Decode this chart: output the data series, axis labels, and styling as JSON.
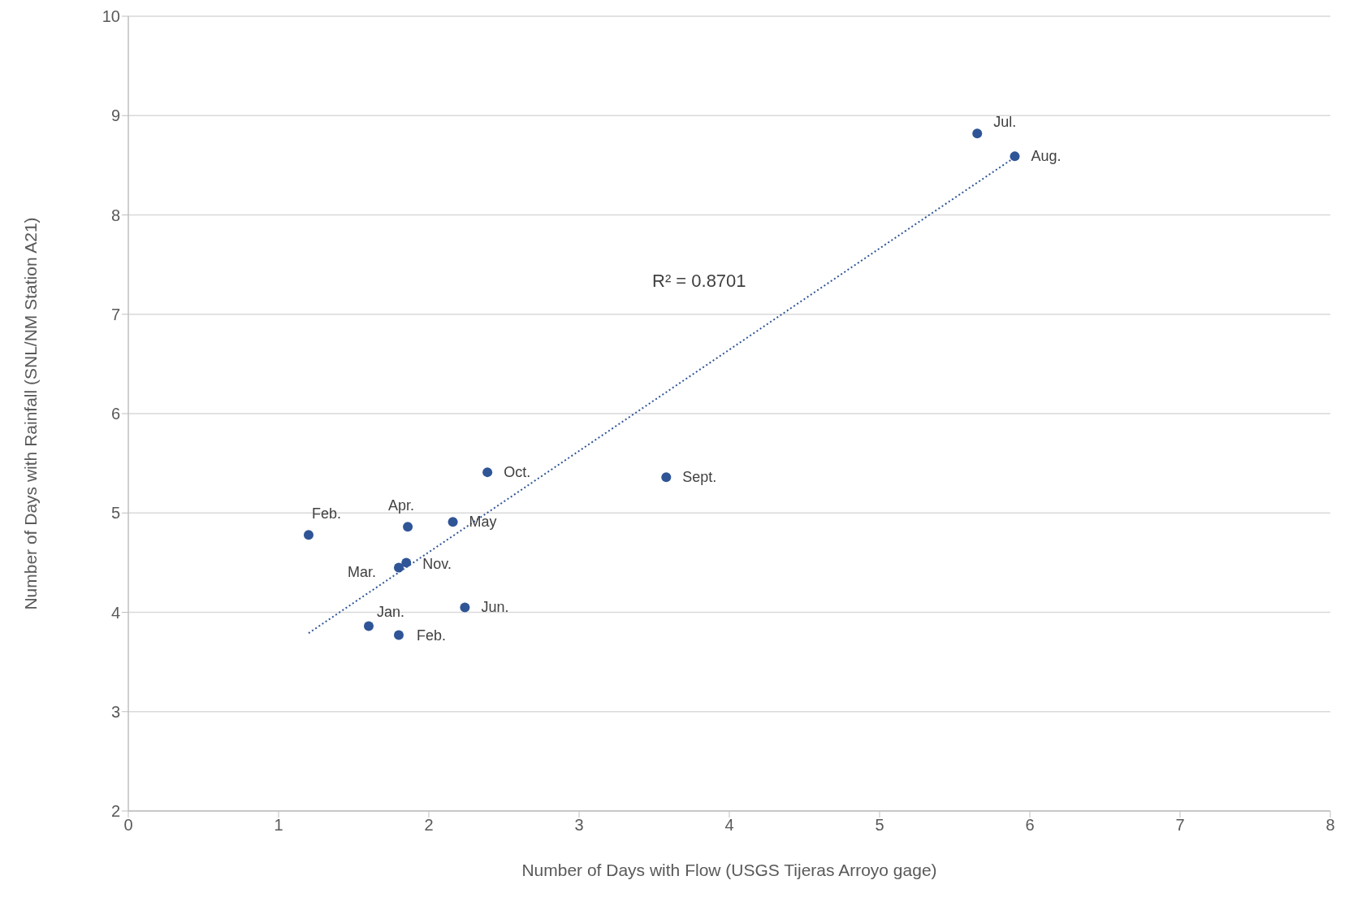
{
  "chart_data": {
    "type": "scatter",
    "xlabel": "Number of Days with Flow (USGS Tijeras Arroyo gage)",
    "ylabel": "Number of Days with Rainfall (SNL/NM Station A21)",
    "xlim": [
      0,
      8
    ],
    "xticks": [
      0,
      1,
      2,
      3,
      4,
      5,
      6,
      7,
      8
    ],
    "ylim": [
      2,
      10
    ],
    "yticks": [
      2,
      3,
      4,
      5,
      6,
      7,
      8,
      9,
      10
    ],
    "grid": "y",
    "legend": false,
    "marker": "circle",
    "series": [
      {
        "type": "scatter",
        "color": "#2f5597",
        "x": [
          5.65,
          5.9,
          2.39,
          3.58,
          1.2,
          1.86,
          2.16,
          1.85,
          1.8,
          2.24,
          1.6,
          1.8
        ],
        "values": [
          8.82,
          8.59,
          5.41,
          5.36,
          4.78,
          4.86,
          4.91,
          4.5,
          4.45,
          4.05,
          3.86,
          3.77
        ]
      },
      {
        "type": "line",
        "color": "#2f5597",
        "line_style": "dotted",
        "marker": "none",
        "x": [
          1.2,
          5.9
        ],
        "values": [
          3.79,
          8.58
        ]
      }
    ],
    "annotations": [
      "R² = 0.8701",
      {
        "text": "Jul.",
        "x": 5.65,
        "y": 8.82
      },
      {
        "text": "Aug.",
        "x": 5.9,
        "y": 8.59
      },
      {
        "text": "Oct.",
        "x": 2.39,
        "y": 5.41
      },
      {
        "text": "Sept.",
        "x": 3.58,
        "y": 5.36
      },
      {
        "text": "Feb.",
        "x": 1.2,
        "y": 4.78
      },
      {
        "text": "Apr.",
        "x": 1.86,
        "y": 4.86
      },
      {
        "text": "May",
        "x": 2.16,
        "y": 4.91
      },
      {
        "text": "Nov.",
        "x": 1.85,
        "y": 4.5
      },
      {
        "text": "Mar.",
        "x": 1.8,
        "y": 4.45
      },
      {
        "text": "Jun.",
        "x": 2.24,
        "y": 4.05
      },
      {
        "text": "Jan.",
        "x": 1.6,
        "y": 3.86
      },
      {
        "text": "Feb.",
        "x": 1.8,
        "y": 3.77
      }
    ]
  }
}
